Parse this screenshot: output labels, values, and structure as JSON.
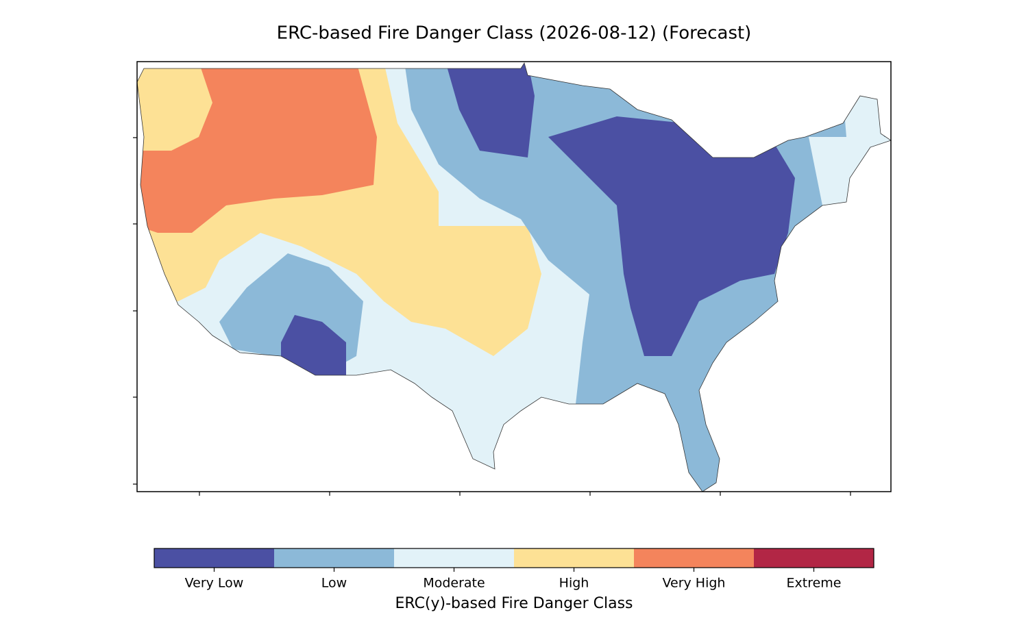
{
  "title": "ERC-based Fire Danger Class (2026-08-12) (Forecast)",
  "colorbar": {
    "label": "ERC(y)-based Fire Danger Class",
    "classes": [
      {
        "name": "Very Low",
        "color": "#4b50a3"
      },
      {
        "name": "Low",
        "color": "#8cb9d8"
      },
      {
        "name": "Moderate",
        "color": "#e2f2f8"
      },
      {
        "name": "High",
        "color": "#fde195"
      },
      {
        "name": "Very High",
        "color": "#f4845c"
      },
      {
        "name": "Extreme",
        "color": "#b22645"
      }
    ]
  }
}
